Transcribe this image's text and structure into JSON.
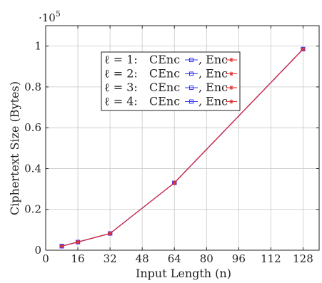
{
  "chart_data": {
    "type": "line",
    "xlabel": "Input Length (n)",
    "ylabel": "Ciphertext Size (Bytes)",
    "y_multiplier": "·10",
    "y_multiplier_exp": "5",
    "xlim": [
      0,
      136
    ],
    "ylim": [
      0,
      1.1
    ],
    "xticks": [
      0,
      16,
      32,
      48,
      64,
      80,
      96,
      112,
      128
    ],
    "yticks": [
      0,
      0.2,
      0.4,
      0.6,
      0.8,
      1
    ],
    "ytick_labels": [
      "0",
      "0.2",
      "0.4",
      "0.6",
      "0.8",
      "1"
    ],
    "grid": true,
    "legend_position": "top-center",
    "x": [
      8,
      16,
      32,
      64,
      128
    ],
    "series": [
      {
        "name": "ℓ = 1: CEnc",
        "color": "#3333ff",
        "marker": "square",
        "values": [
          0.02,
          0.04,
          0.082,
          0.33,
          0.985
        ]
      },
      {
        "name": "Enc",
        "color": "#e03030",
        "marker": "star",
        "values": [
          0.02,
          0.04,
          0.082,
          0.33,
          0.985
        ]
      },
      {
        "name": "ℓ = 2: CEnc",
        "color": "#3333ff",
        "marker": "square",
        "values": [
          0.02,
          0.04,
          0.082,
          0.33,
          0.985
        ]
      },
      {
        "name": "Enc",
        "color": "#e03030",
        "marker": "star",
        "values": [
          0.02,
          0.04,
          0.082,
          0.33,
          0.985
        ]
      },
      {
        "name": "ℓ = 3: CEnc",
        "color": "#3333ff",
        "marker": "square",
        "values": [
          0.02,
          0.04,
          0.082,
          0.33,
          0.985
        ]
      },
      {
        "name": "Enc",
        "color": "#e03030",
        "marker": "star",
        "values": [
          0.02,
          0.04,
          0.082,
          0.33,
          0.985
        ]
      },
      {
        "name": "ℓ = 4: CEnc",
        "color": "#3333ff",
        "marker": "square",
        "values": [
          0.02,
          0.04,
          0.082,
          0.33,
          0.985
        ]
      },
      {
        "name": "Enc",
        "color": "#e03030",
        "marker": "star",
        "values": [
          0.02,
          0.04,
          0.082,
          0.33,
          0.985
        ]
      }
    ],
    "legend_rows": [
      {
        "prefix": "ℓ = 1:",
        "a": "CEnc",
        "b": "Enc"
      },
      {
        "prefix": "ℓ = 2:",
        "a": "CEnc",
        "b": "Enc"
      },
      {
        "prefix": "ℓ = 3:",
        "a": "CEnc",
        "b": "Enc"
      },
      {
        "prefix": "ℓ = 4:",
        "a": "CEnc",
        "b": "Enc"
      }
    ]
  }
}
